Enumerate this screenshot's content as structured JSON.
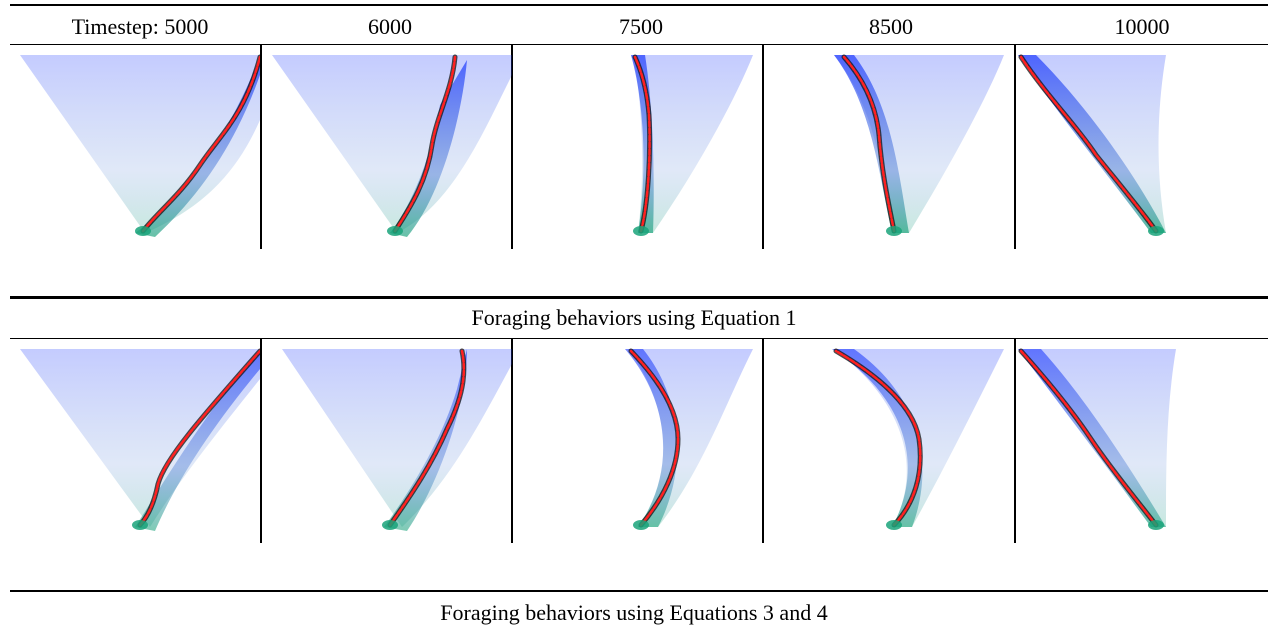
{
  "column_headers": [
    "Timestep: 5000",
    "6000",
    "7500",
    "8500",
    "10000"
  ],
  "rows": [
    {
      "caption": "Foraging behaviors using Equation 1",
      "panels": [
        {
          "timestep": "5000",
          "variant": "spread"
        },
        {
          "timestep": "6000",
          "variant": "spread"
        },
        {
          "timestep": "7500",
          "variant": "spread"
        },
        {
          "timestep": "8500",
          "variant": "spread"
        },
        {
          "timestep": "10000",
          "variant": "spread"
        }
      ]
    },
    {
      "caption": "Foraging behaviors using Equations 3 and 4",
      "panels": [
        {
          "timestep": "5000",
          "variant": "smooth"
        },
        {
          "timestep": "6000",
          "variant": "smooth"
        },
        {
          "timestep": "7500",
          "variant": "smooth"
        },
        {
          "timestep": "8500",
          "variant": "smooth"
        },
        {
          "timestep": "10000",
          "variant": "smooth"
        }
      ]
    }
  ],
  "colors": {
    "blue": "#1f3bff",
    "teal": "#1aa37a",
    "dark": "#111111",
    "trail": "#ff2020"
  }
}
